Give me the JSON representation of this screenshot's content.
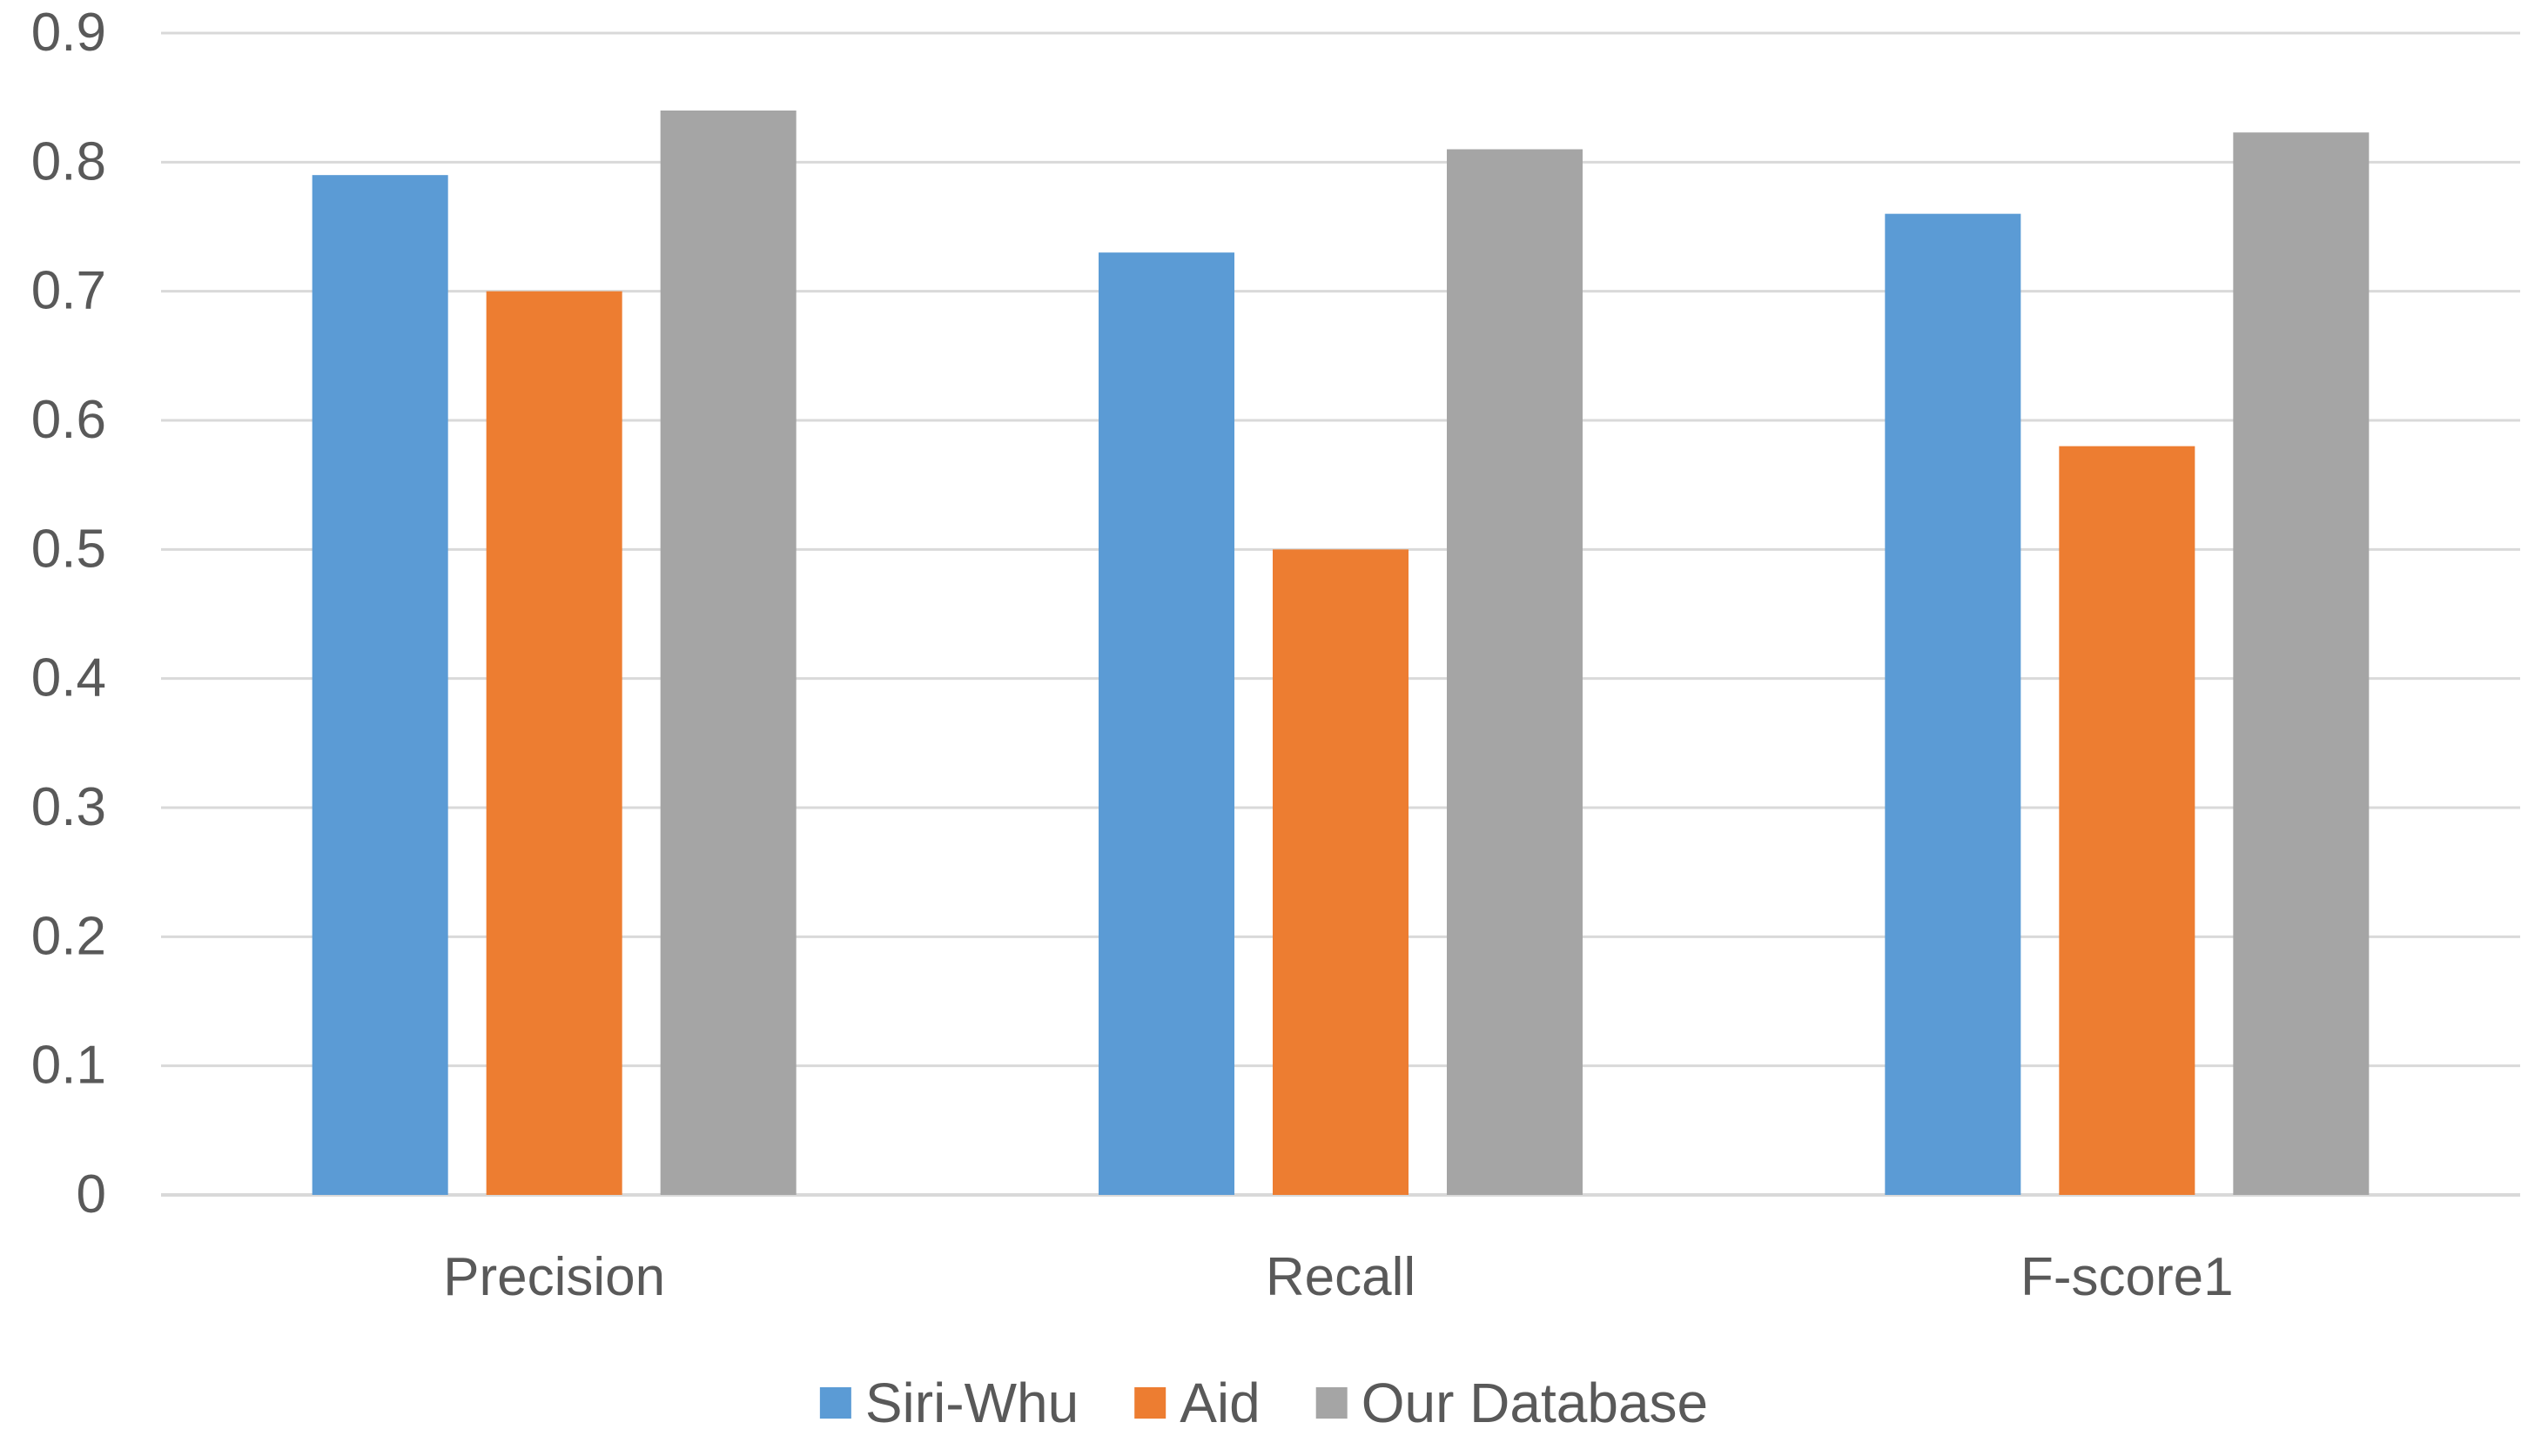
{
  "chart_data": {
    "type": "bar",
    "title": "",
    "xlabel": "",
    "ylabel": "",
    "categories": [
      "Precision",
      "Recall",
      "F-score1"
    ],
    "series": [
      {
        "name": "Siri-Whu",
        "color": "#5B9BD5",
        "values": [
          0.79,
          0.73,
          0.76
        ]
      },
      {
        "name": "Aid",
        "color": "#ED7D31",
        "values": [
          0.7,
          0.5,
          0.58
        ]
      },
      {
        "name": "Our Database",
        "color": "#A5A5A5",
        "values": [
          0.84,
          0.81,
          0.823
        ]
      }
    ],
    "ylim": [
      0,
      0.9
    ],
    "yticks": [
      "0",
      "0.1",
      "0.2",
      "0.3",
      "0.4",
      "0.5",
      "0.6",
      "0.7",
      "0.8",
      "0.9"
    ],
    "grid": true,
    "legend_position": "bottom",
    "gridline_color": "#D9D9D9",
    "text_color": "#595959"
  }
}
